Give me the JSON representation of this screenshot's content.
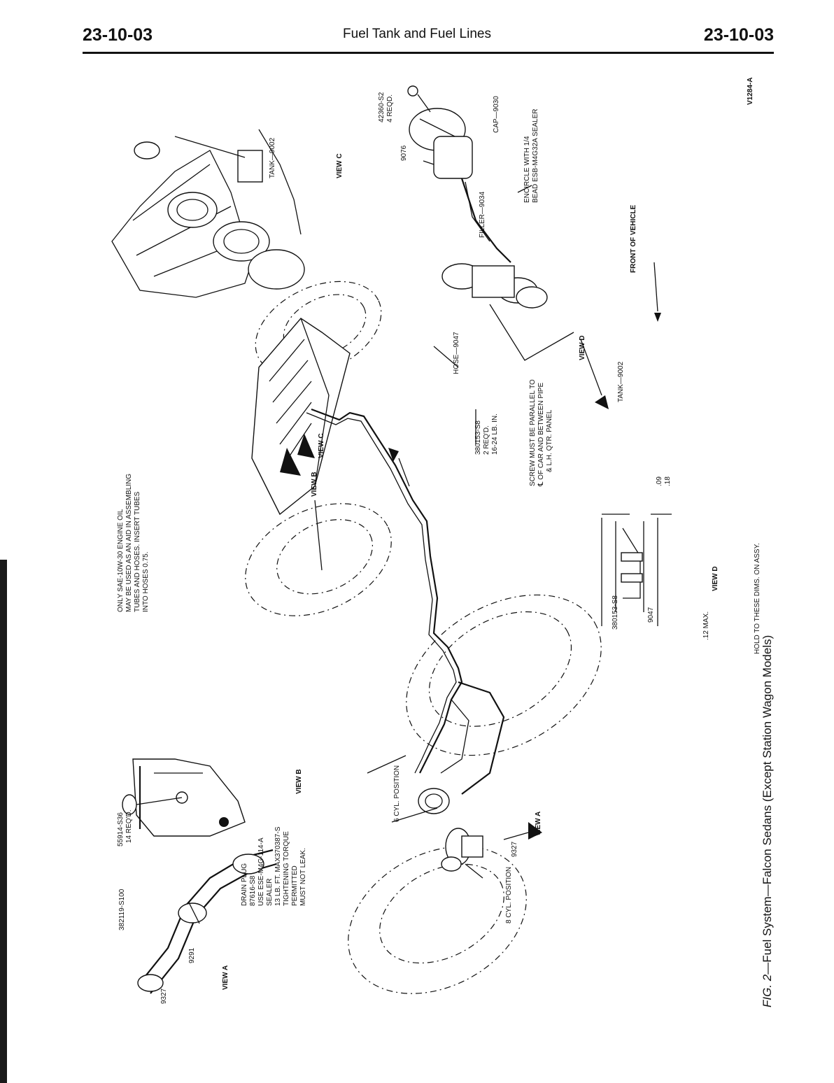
{
  "header": {
    "left_code": "23-10-03",
    "title": "Fuel Tank and Fuel Lines",
    "right_code": "23-10-03"
  },
  "figure": {
    "ref": "V1284-A",
    "caption_prefix": "FIG. 2",
    "caption_text": "—Fuel System—Falcon Sedans (Except Station Wagon Models)"
  },
  "labels": {
    "tank_c": "TANK—9002",
    "view_c": "VIEW C",
    "part_42360": "42360-S2",
    "part_42360_qty": "4 REQD.",
    "cap": "CAP—9030",
    "part_9076": "9076",
    "encircle_1": "ENCIRCLE WITH 1/4",
    "encircle_2": "BEAD ESB-M4G32A SEALER",
    "filler": "FILLER—9034",
    "front_of_vehicle": "FRONT OF VEHICLE",
    "hose": "HOSE—9047",
    "clamp_1": "380153-S8",
    "clamp_2": "2 REQ'D.",
    "clamp_3": "16-24 LB. IN.",
    "screw_1": "SCREW MUST BE PARALLEL TO",
    "screw_2": "℄ OF CAR AND BETWEEN PIPE",
    "screw_3": "& L.H. QTR. PANEL",
    "view_d_arrow": "VIEW D",
    "tank_d": "TANK—9002",
    "oil_1": "ONLY SAE-10W-30 ENGINE OIL",
    "oil_2": "MAY BE USED AS AN AID IN ASSEMBLING",
    "oil_3": "TUBES AND HOSES. INSERT TUBES",
    "oil_4": "INTO HOSES 0.75.",
    "view_b_arrow": "VIEW B",
    "view_c_arrow": "VIEW C",
    "dim_09": ".09",
    "dim_18": ".18",
    "d_part_380153": "380153-S8",
    "d_part_9047": "9047",
    "d_max": ".12 MAX.",
    "view_d": "VIEW D",
    "hold": "HOLD TO THESE DIMS. ON ASSY.",
    "part_55914": "55914-S36",
    "part_55914_qty": "14 REQ'D.",
    "view_b": "VIEW B",
    "drain_1": "DRAIN PLUG",
    "drain_2": "87616-S8",
    "drain_3": "USE ESE-M4G-114-A",
    "drain_4": "SEALER",
    "drain_5": "13 LB. FT. MAX.",
    "drain_6": "TIGHTENING TORQUE",
    "drain_7": "PERMITTED",
    "drain_8": "MUST NOT LEAK.",
    "six_cyl": "6 CYL. POSITION",
    "part_9327": "9327",
    "view_a_arrow": "VIEW A",
    "eight_cyl": "8 CYL. POSITION",
    "part_382119": "382119-S100",
    "part_370387": "370387-S",
    "a_9291": "9291",
    "a_9327": "9327",
    "view_a": "VIEW A"
  }
}
